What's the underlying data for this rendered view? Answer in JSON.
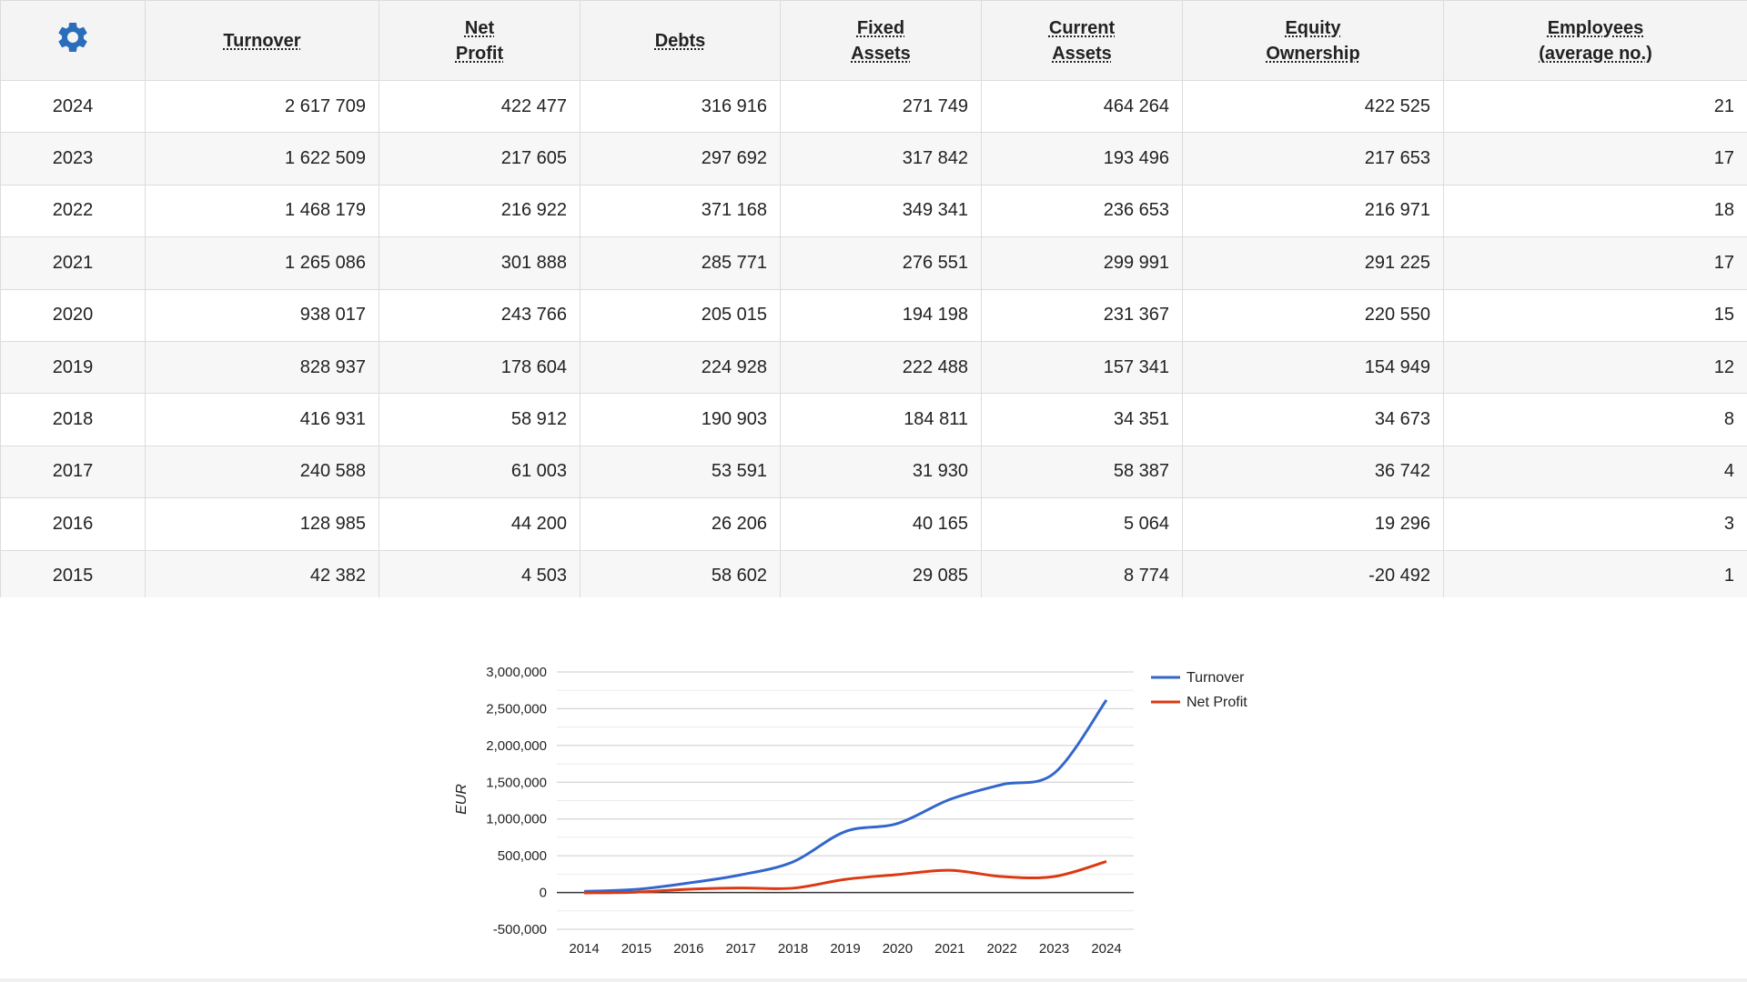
{
  "table": {
    "settings_icon": "gear-icon",
    "accent_color": "#2a6ebb",
    "headers": [
      {
        "key": "turnover",
        "line1": "Turnover",
        "line2": ""
      },
      {
        "key": "net_profit",
        "line1": "Net",
        "line2": "Profit"
      },
      {
        "key": "debts",
        "line1": "Debts",
        "line2": ""
      },
      {
        "key": "fixed_assets",
        "line1": "Fixed",
        "line2": "Assets"
      },
      {
        "key": "current_assets",
        "line1": "Current",
        "line2": "Assets"
      },
      {
        "key": "equity",
        "line1": "Equity",
        "line2": "Ownership"
      },
      {
        "key": "employees",
        "line1": "Employees",
        "line2": "(average no.)"
      }
    ],
    "rows": [
      {
        "year": "2024",
        "turnover": "2 617 709",
        "net_profit": "422 477",
        "debts": "316 916",
        "fixed_assets": "271 749",
        "current_assets": "464 264",
        "equity": "422 525",
        "employees": "21"
      },
      {
        "year": "2023",
        "turnover": "1 622 509",
        "net_profit": "217 605",
        "debts": "297 692",
        "fixed_assets": "317 842",
        "current_assets": "193 496",
        "equity": "217 653",
        "employees": "17"
      },
      {
        "year": "2022",
        "turnover": "1 468 179",
        "net_profit": "216 922",
        "debts": "371 168",
        "fixed_assets": "349 341",
        "current_assets": "236 653",
        "equity": "216 971",
        "employees": "18"
      },
      {
        "year": "2021",
        "turnover": "1 265 086",
        "net_profit": "301 888",
        "debts": "285 771",
        "fixed_assets": "276 551",
        "current_assets": "299 991",
        "equity": "291 225",
        "employees": "17"
      },
      {
        "year": "2020",
        "turnover": "938 017",
        "net_profit": "243 766",
        "debts": "205 015",
        "fixed_assets": "194 198",
        "current_assets": "231 367",
        "equity": "220 550",
        "employees": "15"
      },
      {
        "year": "2019",
        "turnover": "828 937",
        "net_profit": "178 604",
        "debts": "224 928",
        "fixed_assets": "222 488",
        "current_assets": "157 341",
        "equity": "154 949",
        "employees": "12"
      },
      {
        "year": "2018",
        "turnover": "416 931",
        "net_profit": "58 912",
        "debts": "190 903",
        "fixed_assets": "184 811",
        "current_assets": "34 351",
        "equity": "34 673",
        "employees": "8"
      },
      {
        "year": "2017",
        "turnover": "240 588",
        "net_profit": "61 003",
        "debts": "53 591",
        "fixed_assets": "31 930",
        "current_assets": "58 387",
        "equity": "36 742",
        "employees": "4"
      },
      {
        "year": "2016",
        "turnover": "128 985",
        "net_profit": "44 200",
        "debts": "26 206",
        "fixed_assets": "40 165",
        "current_assets": "5 064",
        "equity": "19 296",
        "employees": "3"
      },
      {
        "year": "2015",
        "turnover": "42 382",
        "net_profit": "4 503",
        "debts": "58 602",
        "fixed_assets": "29 085",
        "current_assets": "8 774",
        "equity": "-20 492",
        "employees": "1"
      }
    ]
  },
  "chart_data": {
    "type": "line",
    "title": "",
    "xlabel": "",
    "ylabel": "EUR",
    "x": [
      "2014",
      "2015",
      "2016",
      "2017",
      "2018",
      "2019",
      "2020",
      "2021",
      "2022",
      "2023",
      "2024"
    ],
    "ylim": [
      -500000,
      3000000
    ],
    "yticks": [
      -500000,
      0,
      500000,
      1000000,
      1500000,
      2000000,
      2500000,
      3000000
    ],
    "ytick_labels": [
      "-500,000",
      "0",
      "500,000",
      "1,000,000",
      "1,500,000",
      "2,000,000",
      "2,500,000",
      "3,000,000"
    ],
    "grid": true,
    "legend_position": "right",
    "series": [
      {
        "name": "Turnover",
        "color": "#3366cc",
        "values": [
          15000,
          42382,
          128985,
          240588,
          416931,
          828937,
          938017,
          1265086,
          1468179,
          1622509,
          2617709
        ]
      },
      {
        "name": "Net Profit",
        "color": "#dc3912",
        "values": [
          -5000,
          4503,
          44200,
          61003,
          58912,
          178604,
          243766,
          301888,
          216922,
          217605,
          422477
        ]
      }
    ]
  }
}
